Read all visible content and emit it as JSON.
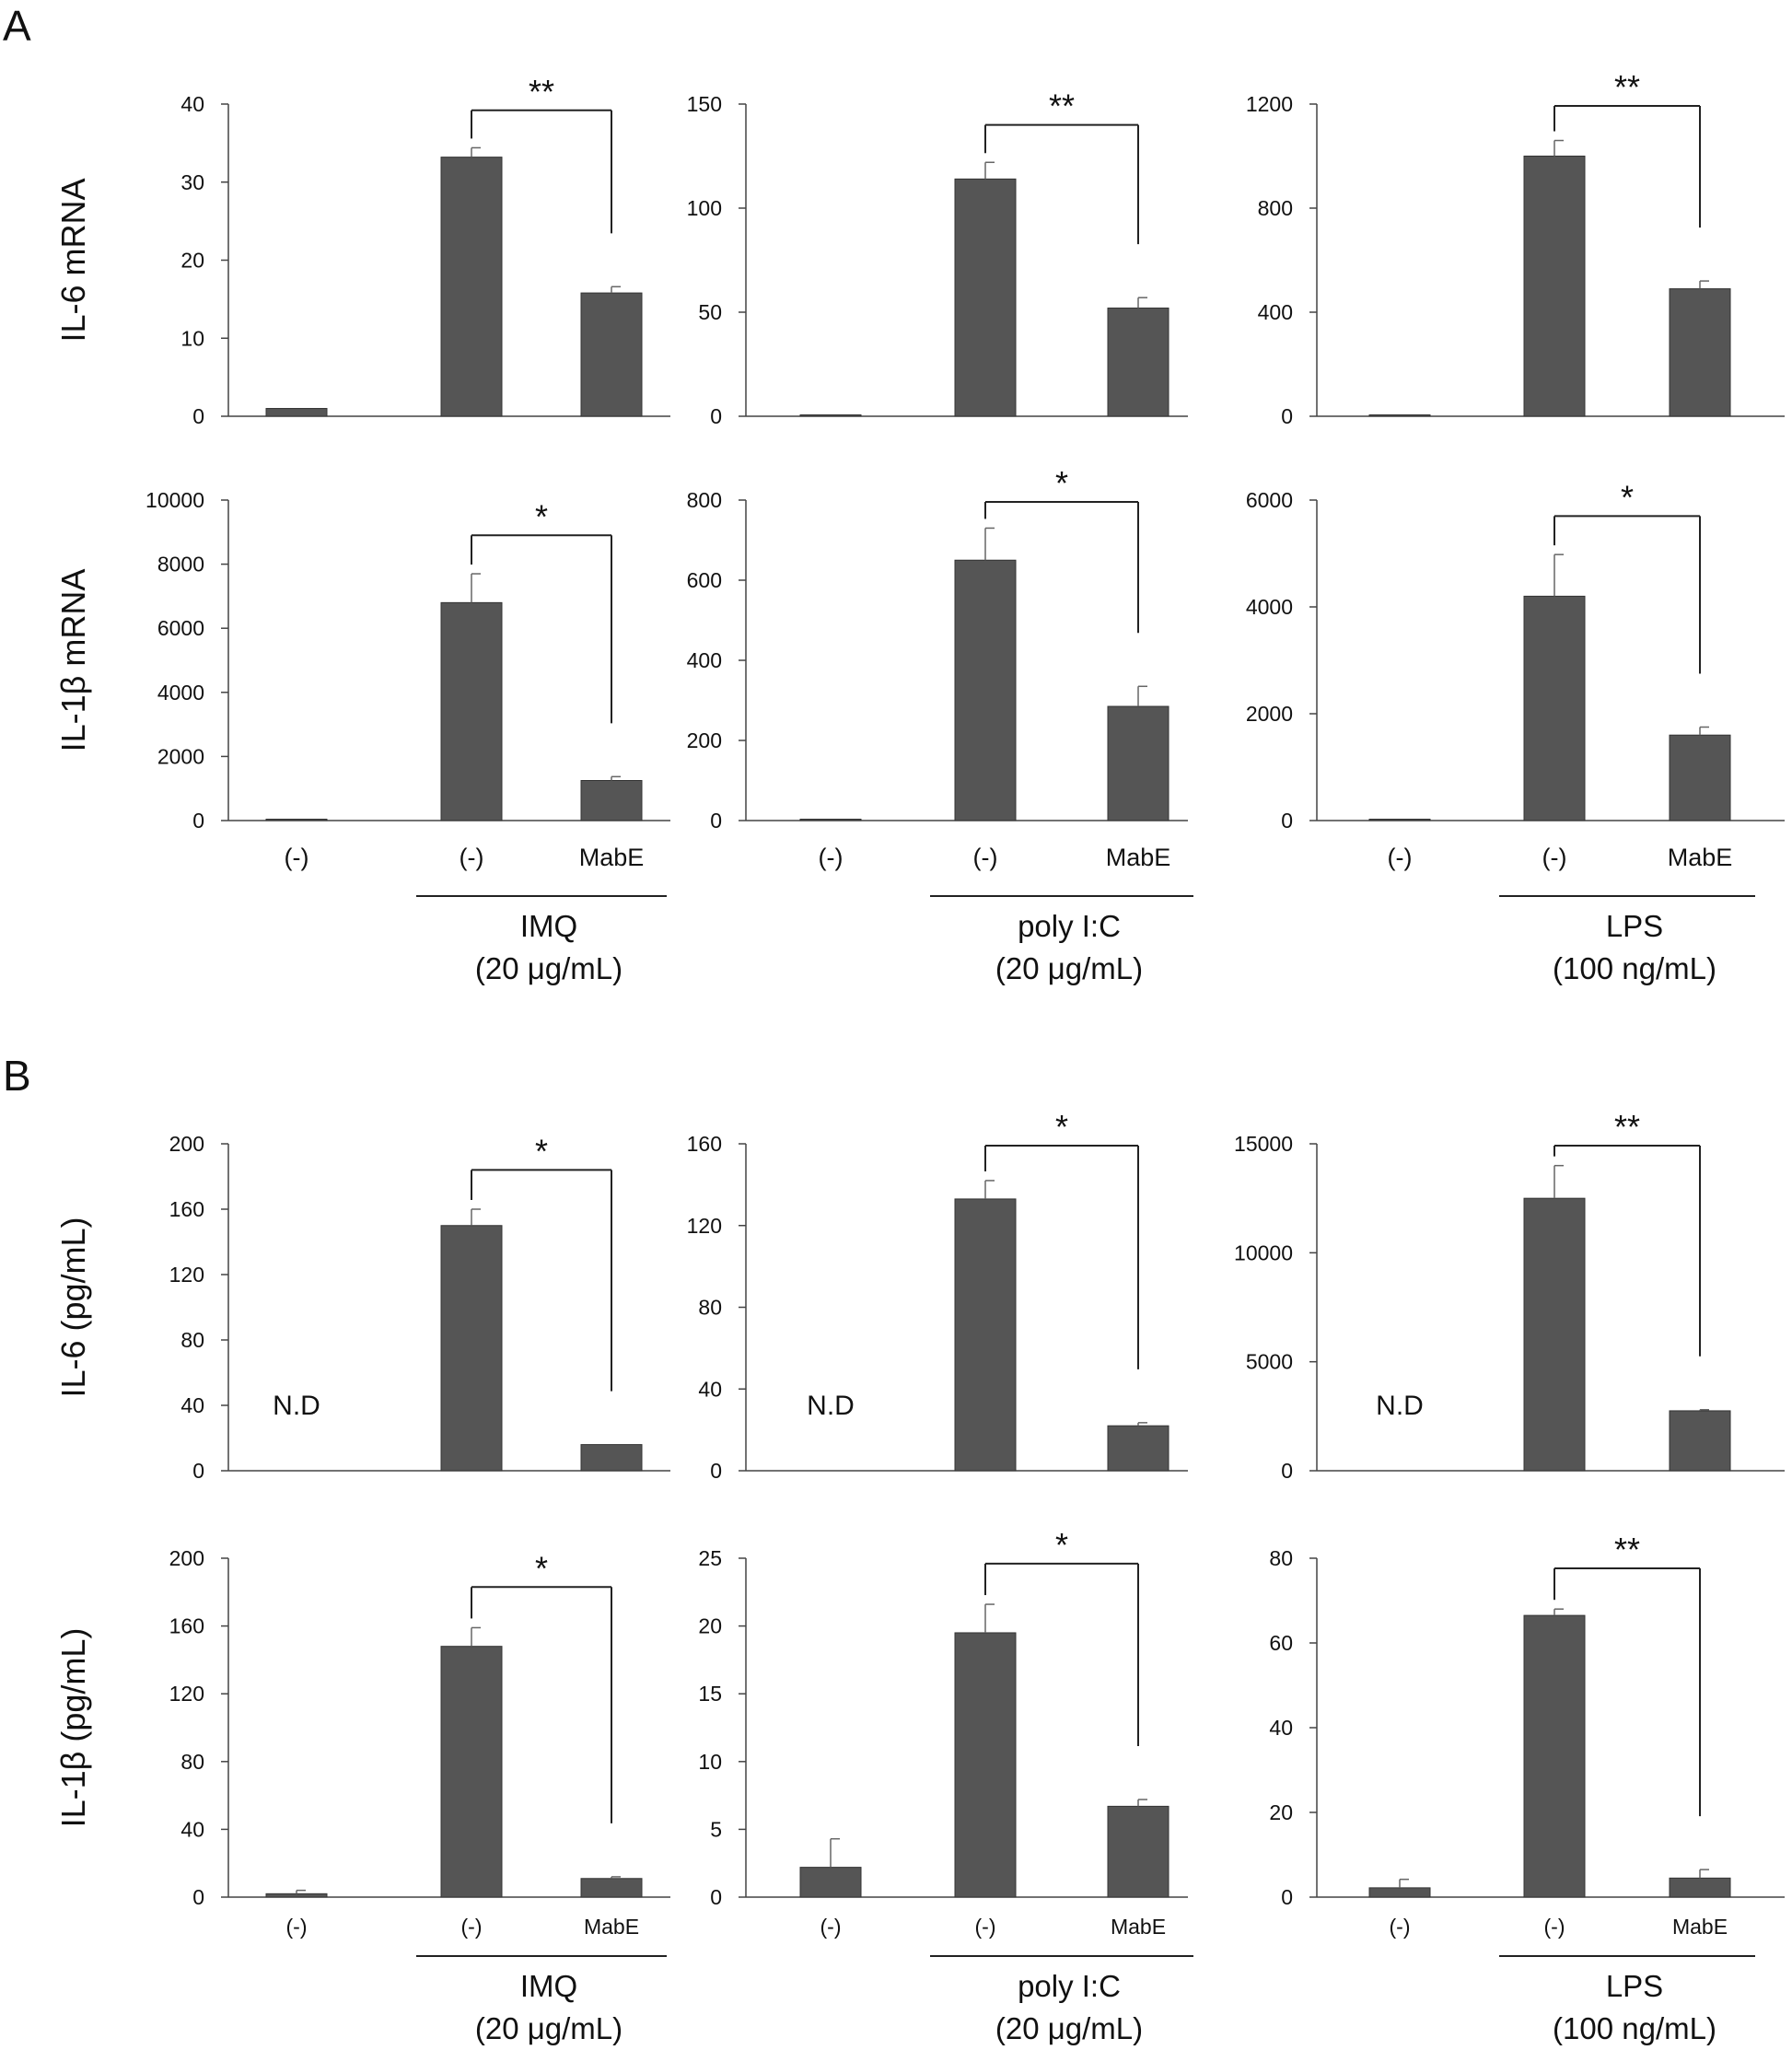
{
  "panels": {
    "A": "A",
    "B": "B"
  },
  "row_labels": [
    "IL-6 mRNA",
    "IL-1β mRNA",
    "IL-6 (pg/mL)",
    "IL-1β (pg/mL)"
  ],
  "treatments": {
    "A": [
      {
        "name": "IMQ",
        "dose": "(20 μg/mL)"
      },
      {
        "name": "poly I:C",
        "dose": "(20 μg/mL)"
      },
      {
        "name": "LPS",
        "dose": "(100 ng/mL)"
      }
    ],
    "B": [
      {
        "name": "IMQ",
        "dose": "(20 μg/mL)"
      },
      {
        "name": "poly I:C",
        "dose": "(20 μg/mL)"
      },
      {
        "name": "LPS",
        "dose": "(100 ng/mL)"
      }
    ]
  },
  "colors": {
    "bar": "#555555",
    "axis": "#444444",
    "text": "#111111"
  },
  "chart_data": [
    {
      "type": "bar",
      "panel": "A",
      "ylabel": "IL-6 mRNA",
      "categories": [
        "(-)",
        "(-)",
        "MabE"
      ],
      "values": [
        1,
        33.2,
        15.8
      ],
      "errors": [
        0,
        1.2,
        0.8
      ],
      "ylim": [
        0,
        40
      ],
      "yticks": [
        0,
        10,
        20,
        30,
        40
      ],
      "significance": "**"
    },
    {
      "type": "bar",
      "panel": "A",
      "ylabel": "IL-6 mRNA",
      "categories": [
        "(-)",
        "(-)",
        "MabE"
      ],
      "values": [
        0.5,
        114,
        52
      ],
      "errors": [
        0,
        8,
        5
      ],
      "ylim": [
        0,
        150
      ],
      "yticks": [
        0,
        50,
        100,
        150
      ],
      "significance": "**"
    },
    {
      "type": "bar",
      "panel": "A",
      "ylabel": "IL-6 mRNA",
      "categories": [
        "(-)",
        "(-)",
        "MabE"
      ],
      "values": [
        1,
        1000,
        490
      ],
      "errors": [
        0,
        60,
        30
      ],
      "ylim": [
        0,
        1200
      ],
      "yticks": [
        0,
        400,
        800,
        1200
      ],
      "significance": "**"
    },
    {
      "type": "bar",
      "panel": "A",
      "ylabel": "IL-1β mRNA",
      "categories": [
        "(-)",
        "(-)",
        "MabE"
      ],
      "values": [
        1,
        6800,
        1250
      ],
      "errors": [
        0,
        900,
        120
      ],
      "ylim": [
        0,
        10000
      ],
      "yticks": [
        0,
        2000,
        4000,
        6000,
        8000,
        10000
      ],
      "significance": "*"
    },
    {
      "type": "bar",
      "panel": "A",
      "ylabel": "IL-1β mRNA",
      "categories": [
        "(-)",
        "(-)",
        "MabE"
      ],
      "values": [
        1,
        650,
        285
      ],
      "errors": [
        0,
        80,
        50
      ],
      "ylim": [
        0,
        800
      ],
      "yticks": [
        0,
        200,
        400,
        600,
        800
      ],
      "significance": "*"
    },
    {
      "type": "bar",
      "panel": "A",
      "ylabel": "IL-1β mRNA",
      "categories": [
        "(-)",
        "(-)",
        "MabE"
      ],
      "values": [
        1,
        4200,
        1600
      ],
      "errors": [
        0,
        780,
        150
      ],
      "ylim": [
        0,
        6000
      ],
      "yticks": [
        0,
        2000,
        4000,
        6000
      ],
      "significance": "*"
    },
    {
      "type": "bar",
      "panel": "B",
      "ylabel": "IL-6 (pg/mL)",
      "categories": [
        "(-)",
        "(-)",
        "MabE"
      ],
      "values": [
        null,
        150,
        16
      ],
      "errors": [
        0,
        10,
        0
      ],
      "ylim": [
        0,
        200
      ],
      "yticks": [
        0,
        40,
        80,
        120,
        160,
        200
      ],
      "significance": "*",
      "nd_label": "N.D"
    },
    {
      "type": "bar",
      "panel": "B",
      "ylabel": "IL-6 (pg/mL)",
      "categories": [
        "(-)",
        "(-)",
        "MabE"
      ],
      "values": [
        null,
        133,
        22
      ],
      "errors": [
        0,
        9,
        1.5
      ],
      "ylim": [
        0,
        160
      ],
      "yticks": [
        0,
        40,
        80,
        120,
        160
      ],
      "significance": "*",
      "nd_label": "N.D"
    },
    {
      "type": "bar",
      "panel": "B",
      "ylabel": "IL-6 (pg/mL)",
      "categories": [
        "(-)",
        "(-)",
        "MabE"
      ],
      "values": [
        null,
        12500,
        2750
      ],
      "errors": [
        0,
        1500,
        50
      ],
      "ylim": [
        0,
        15000
      ],
      "yticks": [
        0,
        5000,
        10000,
        15000
      ],
      "significance": "**",
      "nd_label": "N.D"
    },
    {
      "type": "bar",
      "panel": "B",
      "ylabel": "IL-1β (pg/mL)",
      "categories": [
        "(-)",
        "(-)",
        "MabE"
      ],
      "values": [
        2,
        148,
        11
      ],
      "errors": [
        2,
        11,
        1
      ],
      "ylim": [
        0,
        200
      ],
      "yticks": [
        0,
        40,
        80,
        120,
        160,
        200
      ],
      "significance": "*"
    },
    {
      "type": "bar",
      "panel": "B",
      "ylabel": "IL-1β (pg/mL)",
      "categories": [
        "(-)",
        "(-)",
        "MabE"
      ],
      "values": [
        2.2,
        19.5,
        6.7
      ],
      "errors": [
        2.1,
        2.1,
        0.5
      ],
      "ylim": [
        0,
        25
      ],
      "yticks": [
        0,
        5,
        10,
        15,
        20,
        25
      ],
      "significance": "*"
    },
    {
      "type": "bar",
      "panel": "B",
      "ylabel": "IL-1β (pg/mL)",
      "categories": [
        "(-)",
        "(-)",
        "MabE"
      ],
      "values": [
        2.2,
        66.5,
        4.5
      ],
      "errors": [
        2,
        1.5,
        2
      ],
      "ylim": [
        0,
        80
      ],
      "yticks": [
        0,
        20,
        40,
        60,
        80
      ],
      "significance": "**"
    }
  ]
}
